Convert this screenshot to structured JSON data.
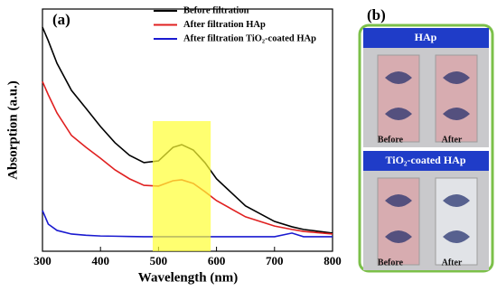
{
  "chart_data": {
    "type": "line",
    "label": "(a)",
    "xlabel": "Wavelength (nm)",
    "ylabel": "Absorption (a.u.)",
    "x": [
      300,
      310,
      325,
      350,
      375,
      400,
      425,
      450,
      475,
      500,
      525,
      540,
      560,
      580,
      600,
      650,
      700,
      730,
      750,
      800
    ],
    "series": [
      {
        "name": "Before filtration",
        "color": "#000000",
        "values": [
          0.925,
          0.869,
          0.776,
          0.664,
          0.59,
          0.515,
          0.448,
          0.396,
          0.366,
          0.373,
          0.429,
          0.44,
          0.418,
          0.366,
          0.299,
          0.187,
          0.123,
          0.101,
          0.09,
          0.075
        ]
      },
      {
        "name": "After filtration HAp",
        "color": "#e02020",
        "values": [
          0.701,
          0.646,
          0.571,
          0.478,
          0.429,
          0.384,
          0.336,
          0.299,
          0.272,
          0.269,
          0.291,
          0.295,
          0.28,
          0.246,
          0.209,
          0.142,
          0.104,
          0.09,
          0.082,
          0.071
        ]
      },
      {
        "name": "After filtration TiO₂-coated HAp",
        "color": "#1a1ad0",
        "values": [
          0.168,
          0.112,
          0.086,
          0.071,
          0.066,
          0.063,
          0.062,
          0.061,
          0.06,
          0.06,
          0.06,
          0.06,
          0.06,
          0.06,
          0.06,
          0.06,
          0.06,
          0.075,
          0.06,
          0.06
        ]
      }
    ],
    "xlim": [
      300,
      800
    ],
    "xticks": [
      300,
      400,
      500,
      600,
      700,
      800
    ],
    "ylim": [
      0,
      1
    ],
    "highlight": {
      "x": [
        490,
        590
      ],
      "color": "#ffff33"
    },
    "legend": "upper center"
  },
  "photos": {
    "label": "(b)",
    "panels": [
      {
        "title": "HAp",
        "captions": [
          "Before",
          "After"
        ]
      },
      {
        "title": "TiO₂-coated HAp",
        "captions": [
          "Before",
          "After"
        ]
      }
    ]
  }
}
